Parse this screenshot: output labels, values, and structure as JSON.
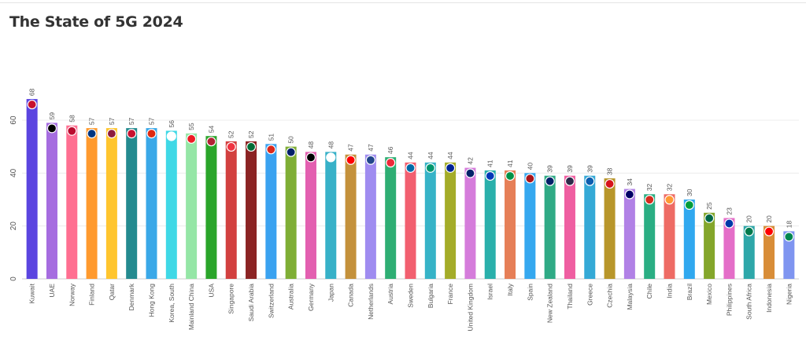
{
  "chart_data": {
    "type": "bar",
    "title": "The State of 5G 2024",
    "xlabel": "",
    "ylabel": "",
    "ylim": [
      0,
      70
    ],
    "yticks": [
      0,
      20,
      40,
      60
    ],
    "grid": true,
    "legend": "none",
    "categories": [
      "Kuwait",
      "UAE",
      "Norway",
      "Finland",
      "Qatar",
      "Denmark",
      "Hong Kong",
      "Korea, South",
      "Mainland China",
      "USA",
      "Singapore",
      "Saudi Arabia",
      "Switzerland",
      "Australia",
      "Germany",
      "Japan",
      "Canada",
      "Netherlands",
      "Austria",
      "Sweden",
      "Bulgaria",
      "France",
      "United Kingdom",
      "Israel",
      "Italy",
      "Spain",
      "New Zealand",
      "Thailand",
      "Greece",
      "Czechia",
      "Malaysia",
      "Chile",
      "India",
      "Brazil",
      "Mexico",
      "Philippines",
      "South Africa",
      "Indonesia",
      "Nigeria"
    ],
    "values": [
      68,
      59,
      58,
      57,
      57,
      57,
      57,
      56,
      55,
      54,
      52,
      52,
      51,
      50,
      48,
      48,
      47,
      47,
      46,
      44,
      44,
      44,
      42,
      41,
      41,
      40,
      39,
      39,
      39,
      38,
      34,
      32,
      32,
      30,
      25,
      23,
      20,
      20,
      18
    ],
    "colors": [
      "#5b45e0",
      "#a66de0",
      "#ff6f91",
      "#ff9a2e",
      "#ffc52e",
      "#238a8f",
      "#3aa8e8",
      "#3fd8e6",
      "#95e6a6",
      "#2aa52a",
      "#d2403f",
      "#8b2323",
      "#3aa2f0",
      "#7fae35",
      "#e35fb0",
      "#37b1c8",
      "#c4913b",
      "#9f8cf0",
      "#2eae73",
      "#f25f6f",
      "#36b3c7",
      "#a4ac28",
      "#d57cdb",
      "#2ab0ab",
      "#e67f57",
      "#35a8ef",
      "#2faa85",
      "#ef5ea1",
      "#34a9d6",
      "#b8962a",
      "#b181e6",
      "#2aae83",
      "#ee6b64",
      "#30a8ef",
      "#84a62a",
      "#e46ec8",
      "#2ea7a9",
      "#d88d38",
      "#7f95f0"
    ],
    "flag_colors": [
      "#c8102e",
      "#000000",
      "#ba0c2f",
      "#003580",
      "#8d1b3d",
      "#c8102e",
      "#de2910",
      "#ffffff",
      "#ee1c25",
      "#b22234",
      "#ef3340",
      "#006c35",
      "#da291c",
      "#012169",
      "#000000",
      "#ffffff",
      "#ff0000",
      "#21468b",
      "#ed2939",
      "#006aa7",
      "#00966e",
      "#002395",
      "#012169",
      "#0038b8",
      "#009246",
      "#aa151b",
      "#012169",
      "#2d2a4a",
      "#0d5eaf",
      "#d7141a",
      "#010066",
      "#d52b1e",
      "#ff9933",
      "#009c3b",
      "#006847",
      "#0038a8",
      "#007a4d",
      "#ff0000",
      "#008751"
    ]
  }
}
